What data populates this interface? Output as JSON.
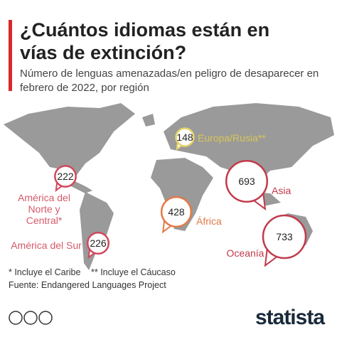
{
  "header": {
    "title": "¿Cuántos idiomas están en vías de extinción?",
    "subtitle": "Número de lenguas amenazadas/en peligro de desaparecer en febrero de 2022, por región"
  },
  "regions": [
    {
      "name": "América del Norte y Central*",
      "value": 222,
      "color": "#d0485c"
    },
    {
      "name": "América del Sur",
      "value": 226,
      "color": "#d0485c"
    },
    {
      "name": "Europa/Rusia**",
      "value": 148,
      "color": "#e6d46a"
    },
    {
      "name": "África",
      "value": 428,
      "color": "#e27a45"
    },
    {
      "name": "Asia",
      "value": 693,
      "color": "#c23a4b"
    },
    {
      "name": "Oceanía",
      "value": 733,
      "color": "#c23a4b"
    }
  ],
  "footnotes": [
    "* Incluye el Caribe",
    "** Incluye el Cáucaso"
  ],
  "source": "Fuente: Endangered Languages Project",
  "brand": "statista"
}
